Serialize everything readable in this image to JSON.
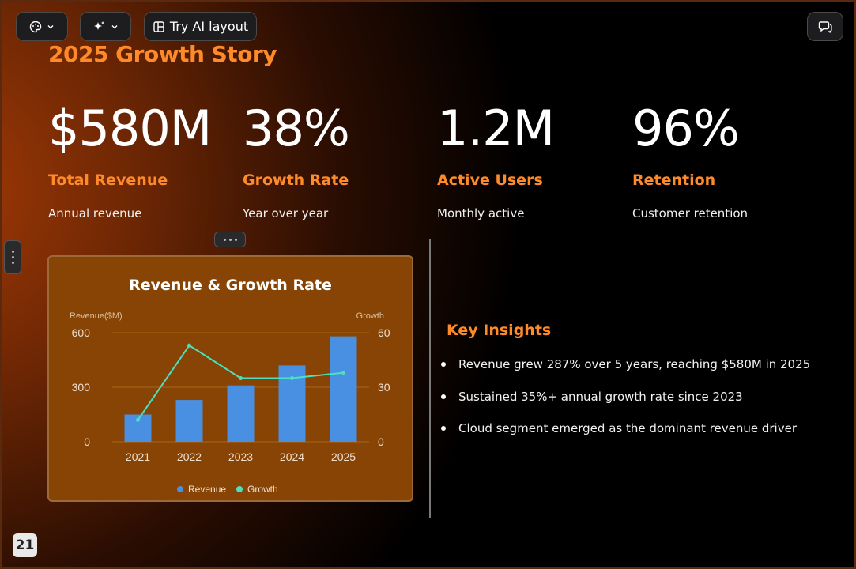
{
  "toolbar": {
    "ai_layout_label": "Try AI layout",
    "icons": [
      "palette-icon",
      "chevron-down-icon",
      "sparkle-icon",
      "layout-icon",
      "comment-icon"
    ]
  },
  "slide": {
    "title": "2025 Growth Story",
    "stats": [
      {
        "value": "$580M",
        "label": "Total Revenue",
        "sub": "Annual revenue"
      },
      {
        "value": "38%",
        "label": "Growth Rate",
        "sub": "Year over year"
      },
      {
        "value": "1.2M",
        "label": "Active Users",
        "sub": "Monthly active"
      },
      {
        "value": "96%",
        "label": "Retention",
        "sub": "Customer retention"
      }
    ],
    "insights": {
      "title": "Key Insights",
      "items": [
        "Revenue grew 287% over 5 years, reaching $580M in 2025",
        "Sustained 35%+ annual growth rate since 2023",
        "Cloud segment emerged as the dominant revenue driver"
      ]
    },
    "page_number": "21"
  },
  "colors": {
    "accent": "#ff8a2a",
    "chart_bg": "#874404",
    "revenue_bar": "#4a90e2",
    "growth_line": "#4de0c0"
  },
  "chart_data": {
    "type": "bar",
    "title": "Revenue & Growth Rate",
    "categories": [
      "2021",
      "2022",
      "2023",
      "2024",
      "2025"
    ],
    "series": [
      {
        "name": "Revenue",
        "type": "bar",
        "axis": "left",
        "values": [
          150,
          230,
          310,
          420,
          580
        ]
      },
      {
        "name": "Growth",
        "type": "line",
        "axis": "right",
        "values": [
          12,
          53,
          35,
          35,
          38
        ]
      }
    ],
    "ylabel_left": "Revenue($M)",
    "ylabel_right": "Growth",
    "ylim_left": [
      0,
      600
    ],
    "ylim_right": [
      0,
      60
    ],
    "yticks_left": [
      "0",
      "300",
      "600"
    ],
    "yticks_right": [
      "0",
      "30",
      "60"
    ],
    "legend": "bottom",
    "grid": true
  }
}
